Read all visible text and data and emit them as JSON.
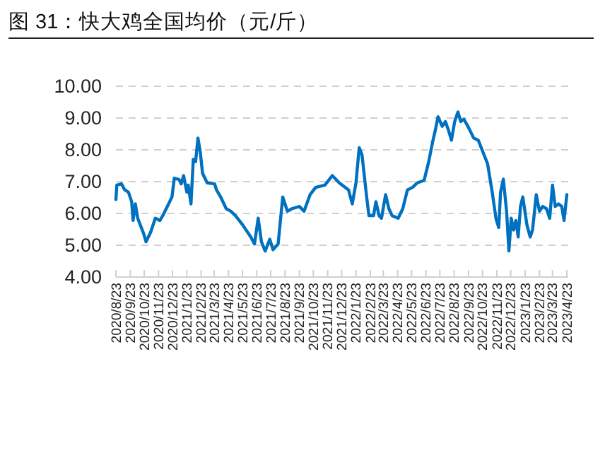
{
  "chart_data": {
    "type": "line",
    "title": "图 31：快大鸡全国均价（元/斤）",
    "x": [
      "2020-08-23",
      "2020-08-25",
      "2020-09-04",
      "2020-09-11",
      "2020-09-19",
      "2020-09-26",
      "2020-09-29",
      "2020-10-04",
      "2020-10-09",
      "2020-10-22",
      "2020-10-27",
      "2020-11-06",
      "2020-11-16",
      "2020-11-26",
      "2020-12-02",
      "2020-12-12",
      "2020-12-22",
      "2020-12-27",
      "2021-01-06",
      "2021-01-11",
      "2021-01-16",
      "2021-01-23",
      "2021-01-26",
      "2021-02-01",
      "2021-02-06",
      "2021-02-11",
      "2021-02-16",
      "2021-02-21",
      "2021-02-26",
      "2021-03-08",
      "2021-03-24",
      "2021-03-28",
      "2021-04-06",
      "2021-04-18",
      "2021-04-28",
      "2021-05-08",
      "2021-05-24",
      "2021-06-03",
      "2021-06-10",
      "2021-06-18",
      "2021-06-26",
      "2021-07-03",
      "2021-07-11",
      "2021-07-21",
      "2021-07-28",
      "2021-08-08",
      "2021-08-18",
      "2021-08-28",
      "2021-09-07",
      "2021-09-23",
      "2021-10-03",
      "2021-10-16",
      "2021-10-28",
      "2021-11-17",
      "2021-12-03",
      "2021-12-18",
      "2022-01-07",
      "2022-01-15",
      "2022-01-23",
      "2022-01-30",
      "2022-02-05",
      "2022-02-15",
      "2022-02-20",
      "2022-03-02",
      "2022-03-07",
      "2022-03-14",
      "2022-03-19",
      "2022-03-28",
      "2022-04-04",
      "2022-04-11",
      "2022-04-24",
      "2022-05-04",
      "2022-05-14",
      "2022-05-25",
      "2022-06-04",
      "2022-06-19",
      "2022-06-29",
      "2022-07-07",
      "2022-07-14",
      "2022-07-19",
      "2022-07-28",
      "2022-08-04",
      "2022-08-11",
      "2022-08-17",
      "2022-08-24",
      "2022-08-31",
      "2022-09-06",
      "2022-09-13",
      "2022-09-24",
      "2022-10-04",
      "2022-10-14",
      "2022-10-24",
      "2022-11-03",
      "2022-11-13",
      "2022-11-21",
      "2022-11-27",
      "2022-12-01",
      "2022-12-07",
      "2022-12-14",
      "2022-12-19",
      "2022-12-24",
      "2022-12-29",
      "2023-01-03",
      "2023-01-08",
      "2023-01-13",
      "2023-01-18",
      "2023-01-27",
      "2023-02-03",
      "2023-02-08",
      "2023-02-16",
      "2023-02-23",
      "2023-03-02",
      "2023-03-10",
      "2023-03-17",
      "2023-03-23",
      "2023-03-29",
      "2023-04-05",
      "2023-04-12",
      "2023-04-17",
      "2023-04-23"
    ],
    "series": [
      {
        "color": "#0070c0",
        "values": [
          6.44,
          6.89,
          6.93,
          6.74,
          6.67,
          6.37,
          5.78,
          6.3,
          5.85,
          5.36,
          5.11,
          5.41,
          5.85,
          5.78,
          5.93,
          6.22,
          6.52,
          7.11,
          7.07,
          6.93,
          7.19,
          6.67,
          6.89,
          6.3,
          7.7,
          7.63,
          8.37,
          7.93,
          7.26,
          6.96,
          6.93,
          6.74,
          6.52,
          6.15,
          6.07,
          5.93,
          5.63,
          5.41,
          5.26,
          5.04,
          5.85,
          5.11,
          4.82,
          5.19,
          4.86,
          5.04,
          6.52,
          6.07,
          6.15,
          6.22,
          6.07,
          6.59,
          6.82,
          6.89,
          7.19,
          6.96,
          6.74,
          6.3,
          6.96,
          8.07,
          7.85,
          6.52,
          5.93,
          5.93,
          6.37,
          5.93,
          5.85,
          6.59,
          6.15,
          5.93,
          5.85,
          6.15,
          6.74,
          6.82,
          6.96,
          7.04,
          7.63,
          8.22,
          8.67,
          9.04,
          8.74,
          8.89,
          8.6,
          8.3,
          8.89,
          9.19,
          8.89,
          8.96,
          8.67,
          8.37,
          8.3,
          7.93,
          7.56,
          6.67,
          5.85,
          5.56,
          6.67,
          7.08,
          6.07,
          4.82,
          5.85,
          5.48,
          5.78,
          5.26,
          6.22,
          6.52,
          5.63,
          5.26,
          5.48,
          6.59,
          6.07,
          6.22,
          6.15,
          5.85,
          6.89,
          6.22,
          6.3,
          6.22,
          5.78,
          6.59
        ]
      }
    ],
    "xlim": [
      "2020-08-23",
      "2023-04-23"
    ],
    "xticks": [
      {
        "value": "2020-08-23",
        "label": "2020/8/23"
      },
      {
        "value": "2020-09-23",
        "label": "2020/9/23"
      },
      {
        "value": "2020-10-23",
        "label": "2020/10/23"
      },
      {
        "value": "2020-11-23",
        "label": "2020/11/23"
      },
      {
        "value": "2020-12-23",
        "label": "2020/12/23"
      },
      {
        "value": "2021-01-23",
        "label": "2021/1/23"
      },
      {
        "value": "2021-02-23",
        "label": "2021/2/23"
      },
      {
        "value": "2021-03-23",
        "label": "2021/3/23"
      },
      {
        "value": "2021-04-23",
        "label": "2021/4/23"
      },
      {
        "value": "2021-05-23",
        "label": "2021/5/23"
      },
      {
        "value": "2021-06-23",
        "label": "2021/6/23"
      },
      {
        "value": "2021-07-23",
        "label": "2021/7/23"
      },
      {
        "value": "2021-08-23",
        "label": "2021/8/23"
      },
      {
        "value": "2021-09-23",
        "label": "2021/9/23"
      },
      {
        "value": "2021-10-23",
        "label": "2021/10/23"
      },
      {
        "value": "2021-11-23",
        "label": "2021/11/23"
      },
      {
        "value": "2021-12-23",
        "label": "2021/12/23"
      },
      {
        "value": "2022-01-23",
        "label": "2022/1/23"
      },
      {
        "value": "2022-02-23",
        "label": "2022/2/23"
      },
      {
        "value": "2022-03-23",
        "label": "2022/3/23"
      },
      {
        "value": "2022-04-23",
        "label": "2022/4/23"
      },
      {
        "value": "2022-05-23",
        "label": "2022/5/23"
      },
      {
        "value": "2022-06-23",
        "label": "2022/6/23"
      },
      {
        "value": "2022-07-23",
        "label": "2022/7/23"
      },
      {
        "value": "2022-08-23",
        "label": "2022/8/23"
      },
      {
        "value": "2022-09-23",
        "label": "2022/9/23"
      },
      {
        "value": "2022-10-23",
        "label": "2022/10/23"
      },
      {
        "value": "2022-11-23",
        "label": "2022/11/23"
      },
      {
        "value": "2022-12-23",
        "label": "2022/12/23"
      },
      {
        "value": "2023-01-23",
        "label": "2023/1/23"
      },
      {
        "value": "2023-02-23",
        "label": "2023/2/23"
      },
      {
        "value": "2023-03-23",
        "label": "2023/3/23"
      },
      {
        "value": "2023-04-23",
        "label": "2023/4/23"
      }
    ],
    "ylim": [
      4,
      10
    ],
    "yticks": [
      {
        "value": 4,
        "label": "4.00"
      },
      {
        "value": 5,
        "label": "5.00"
      },
      {
        "value": 6,
        "label": "6.00"
      },
      {
        "value": 7,
        "label": "7.00"
      },
      {
        "value": 8,
        "label": "8.00"
      },
      {
        "value": 9,
        "label": "9.00"
      },
      {
        "value": 10,
        "label": "10.00"
      }
    ],
    "grid": "y",
    "line_style": "solid",
    "marker": "none"
  }
}
